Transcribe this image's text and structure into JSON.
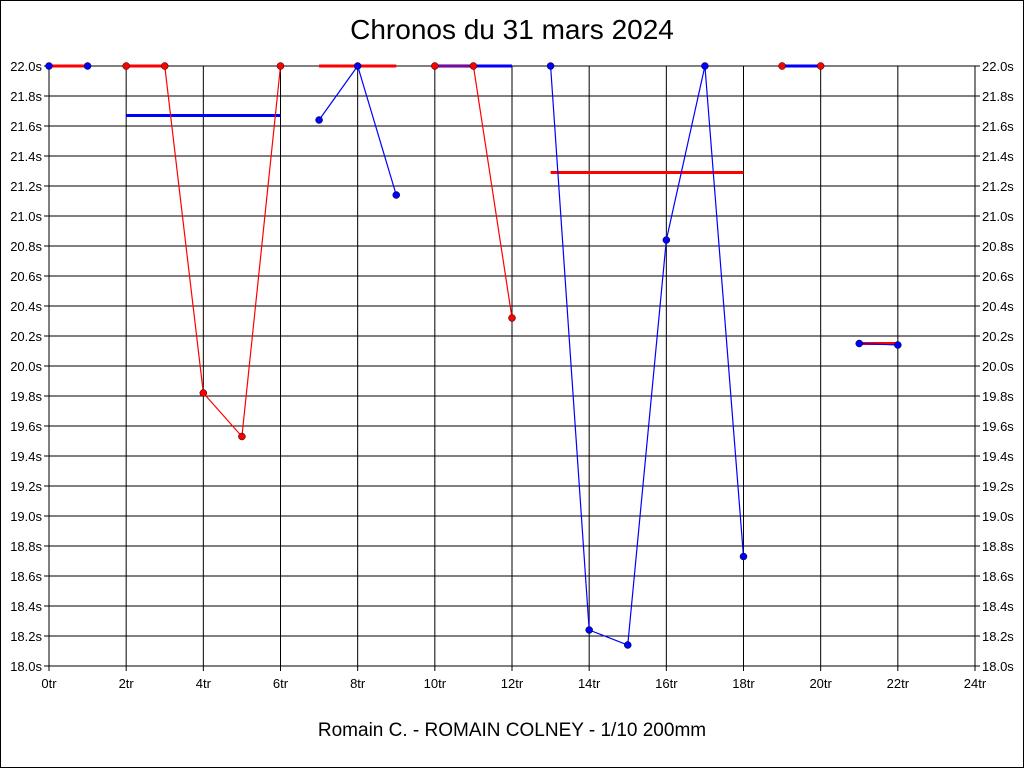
{
  "chart_data": {
    "type": "line",
    "title": "Chronos du 31 mars 2024",
    "caption": "Romain C. - ROMAIN COLNEY - 1/10 200mm",
    "xlim": [
      0,
      24
    ],
    "ylim": [
      18.0,
      22.0
    ],
    "x_ticks": [
      "0tr",
      "2tr",
      "4tr",
      "6tr",
      "8tr",
      "10tr",
      "12tr",
      "14tr",
      "16tr",
      "18tr",
      "20tr",
      "22tr",
      "24tr"
    ],
    "y_ticks": [
      "22.0s",
      "21.8s",
      "21.6s",
      "21.4s",
      "21.2s",
      "21.0s",
      "20.8s",
      "20.6s",
      "20.4s",
      "20.2s",
      "20.0s",
      "19.8s",
      "19.6s",
      "19.4s",
      "19.2s",
      "19.0s",
      "18.8s",
      "18.6s",
      "18.4s",
      "18.2s",
      "18.0s"
    ],
    "grid": true,
    "series": [
      {
        "color": "#ff0000",
        "points": [
          [
            0,
            22.0
          ],
          [
            1,
            22.0
          ]
        ]
      },
      {
        "color": "#ff0000",
        "points": [
          [
            2,
            22.0
          ],
          [
            3,
            22.0
          ],
          [
            4,
            19.82
          ],
          [
            5,
            19.53
          ],
          [
            6,
            22.0
          ]
        ]
      },
      {
        "color": "#0000ff",
        "points": [
          [
            7,
            21.64
          ],
          [
            8,
            22.0
          ],
          [
            9,
            21.14
          ]
        ]
      },
      {
        "color": "#ff0000",
        "points": [
          [
            10,
            22.0
          ],
          [
            11,
            22.0
          ],
          [
            12,
            20.32
          ]
        ]
      },
      {
        "color": "#0000ff",
        "points": [
          [
            13,
            22.0
          ],
          [
            14,
            18.24
          ],
          [
            15,
            18.14
          ],
          [
            16,
            20.84
          ],
          [
            17,
            22.0
          ],
          [
            18,
            18.73
          ]
        ]
      },
      {
        "color": "#0000ff",
        "points": [
          [
            19,
            22.0
          ],
          [
            20,
            22.0
          ]
        ]
      },
      {
        "color": "#0000ff",
        "points": [
          [
            21,
            20.15
          ],
          [
            22,
            20.14
          ]
        ]
      }
    ],
    "points": [
      {
        "x": 0,
        "y": 22.0,
        "color": "#0000ff"
      },
      {
        "x": 1,
        "y": 22.0,
        "color": "#0000ff"
      },
      {
        "x": 2,
        "y": 22.0,
        "color": "#ff0000"
      },
      {
        "x": 3,
        "y": 22.0,
        "color": "#ff0000"
      },
      {
        "x": 4,
        "y": 19.82,
        "color": "#ff0000"
      },
      {
        "x": 5,
        "y": 19.53,
        "color": "#ff0000"
      },
      {
        "x": 6,
        "y": 22.0,
        "color": "#ff0000"
      },
      {
        "x": 7,
        "y": 21.64,
        "color": "#0000ff"
      },
      {
        "x": 8,
        "y": 22.0,
        "color": "#0000ff"
      },
      {
        "x": 9,
        "y": 21.14,
        "color": "#0000ff"
      },
      {
        "x": 10,
        "y": 22.0,
        "color": "#ff0000"
      },
      {
        "x": 11,
        "y": 22.0,
        "color": "#ff0000"
      },
      {
        "x": 12,
        "y": 20.32,
        "color": "#ff0000"
      },
      {
        "x": 13,
        "y": 22.0,
        "color": "#0000ff"
      },
      {
        "x": 14,
        "y": 18.24,
        "color": "#0000ff"
      },
      {
        "x": 15,
        "y": 18.14,
        "color": "#0000ff"
      },
      {
        "x": 16,
        "y": 20.84,
        "color": "#0000ff"
      },
      {
        "x": 17,
        "y": 22.0,
        "color": "#0000ff"
      },
      {
        "x": 18,
        "y": 18.73,
        "color": "#0000ff"
      },
      {
        "x": 19,
        "y": 22.0,
        "color": "#ff0000"
      },
      {
        "x": 20,
        "y": 22.0,
        "color": "#ff0000"
      },
      {
        "x": 21,
        "y": 20.15,
        "color": "#0000ff"
      },
      {
        "x": 22,
        "y": 20.14,
        "color": "#0000ff"
      }
    ],
    "average_lines": [
      {
        "color": "#ff0000",
        "x1": 0,
        "x2": 1,
        "y": 22.0
      },
      {
        "color": "#ff0000",
        "x1": 2,
        "x2": 3,
        "y": 22.0
      },
      {
        "color": "#0000ff",
        "x1": 2,
        "x2": 6,
        "y": 21.67
      },
      {
        "color": "#ff0000",
        "x1": 7,
        "x2": 9,
        "y": 22.0
      },
      {
        "color": "#0000ff",
        "x1": 10,
        "x2": 12,
        "y": 22.0
      },
      {
        "color": "#ff0000",
        "x1": 13,
        "x2": 18,
        "y": 21.29
      },
      {
        "color": "#0000ff",
        "x1": 19,
        "x2": 20,
        "y": 22.0
      },
      {
        "color": "#ff0000",
        "x1": 21,
        "x2": 22,
        "y": 20.15
      }
    ]
  }
}
